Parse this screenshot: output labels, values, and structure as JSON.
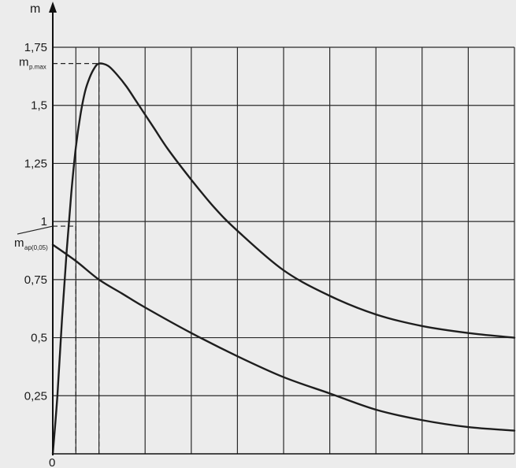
{
  "chart_data": {
    "type": "line",
    "title": "",
    "xlabel": "",
    "ylabel": "m",
    "origin_label": "0",
    "ylim": [
      0,
      1.75
    ],
    "xlim": [
      0,
      10
    ],
    "grid": true,
    "y_ticks": [
      {
        "value": 0.25,
        "label": "0,25"
      },
      {
        "value": 0.5,
        "label": "0,5"
      },
      {
        "value": 0.75,
        "label": "0,75"
      },
      {
        "value": 1.0,
        "label": "1"
      },
      {
        "value": 1.25,
        "label": "1,25"
      },
      {
        "value": 1.5,
        "label": "1,5"
      },
      {
        "value": 1.75,
        "label": "1,75"
      }
    ],
    "x_grid": [
      0.5,
      1,
      2,
      3,
      4,
      5,
      6,
      7,
      8,
      9,
      10
    ],
    "series": [
      {
        "x": [
          0,
          0.1,
          0.2,
          0.3,
          0.4,
          0.5,
          0.6,
          0.7,
          0.8,
          0.9,
          1.0,
          1.2,
          1.4,
          1.6,
          1.8,
          2.0,
          2.2,
          2.5,
          3.0,
          3.5,
          4.0,
          5.0,
          6.0,
          7.0,
          8.0,
          9.0,
          10.0
        ],
        "y": [
          0.0,
          0.25,
          0.58,
          0.87,
          1.12,
          1.32,
          1.46,
          1.56,
          1.62,
          1.66,
          1.68,
          1.67,
          1.63,
          1.58,
          1.52,
          1.46,
          1.4,
          1.31,
          1.18,
          1.06,
          0.96,
          0.79,
          0.68,
          0.6,
          0.55,
          0.52,
          0.5
        ]
      },
      {
        "x": [
          0,
          0.5,
          1,
          1.5,
          2,
          3,
          4,
          5,
          6,
          7,
          8,
          9,
          10
        ],
        "y": [
          0.9,
          0.83,
          0.75,
          0.69,
          0.63,
          0.52,
          0.42,
          0.33,
          0.26,
          0.19,
          0.145,
          0.115,
          0.1
        ]
      }
    ],
    "annotations": [
      {
        "id": "mpmax",
        "main": "m",
        "sub": "p.max",
        "x": 1.0,
        "y": 1.68
      },
      {
        "id": "map",
        "main": "m",
        "sub": "ap(0,05)",
        "x": 0.5,
        "y": 0.98
      }
    ],
    "colors": {
      "curve": "#1e1e1e",
      "grid": "#2a2a2a",
      "background": "#ececec"
    }
  }
}
